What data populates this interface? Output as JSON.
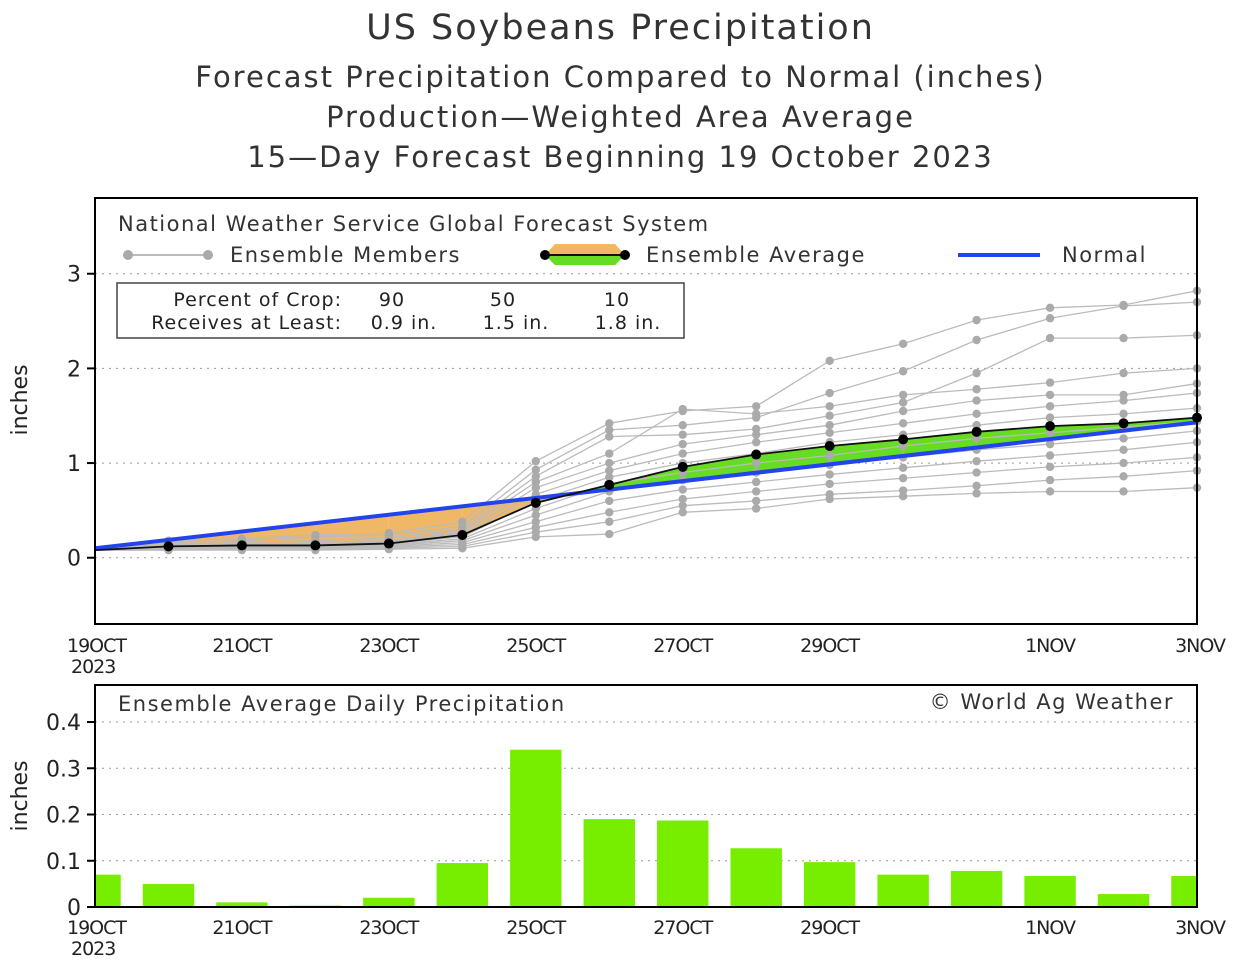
{
  "chart_data": [
    {
      "type": "line",
      "title": "US Soybeans Precipitation",
      "subtitles": [
        "Forecast Precipitation Compared to Normal (inches)",
        "Production—Weighted Area Average",
        "15—Day Forecast Beginning 19 October 2023"
      ],
      "ylabel": "inches",
      "ylim": [
        -0.7,
        3.8
      ],
      "yticks": [
        0,
        1,
        2,
        3
      ],
      "x_day_range": [
        0,
        15
      ],
      "xtick_labels": [
        {
          "day": 0,
          "label": "19OCT",
          "sub": "2023"
        },
        {
          "day": 2,
          "label": "21OCT"
        },
        {
          "day": 4,
          "label": "23OCT"
        },
        {
          "day": 6,
          "label": "25OCT"
        },
        {
          "day": 8,
          "label": "27OCT"
        },
        {
          "day": 10,
          "label": "29OCT"
        },
        {
          "day": 13,
          "label": "1NOV"
        },
        {
          "day": 15,
          "label": "3NOV"
        }
      ],
      "source_text": "National Weather Service Global Forecast System",
      "legend": {
        "members": "Ensemble Members",
        "average": "Ensemble Average",
        "normal": "Normal"
      },
      "crop_box": {
        "row1_label": "Percent of Crop:",
        "row2_label": "Receives at Least:",
        "percents": [
          "90",
          "50",
          "10"
        ],
        "amounts": [
          "0.9 in.",
          "1.5 in.",
          "1.8 in."
        ]
      },
      "normal": {
        "days": [
          0,
          15
        ],
        "values": [
          0.1,
          1.43
        ]
      },
      "ensemble_average": {
        "days": [
          0,
          1,
          2,
          3,
          4,
          5,
          6,
          7,
          8,
          9,
          10,
          11,
          12,
          13,
          14,
          15
        ],
        "values": [
          0.08,
          0.12,
          0.13,
          0.13,
          0.15,
          0.24,
          0.58,
          0.77,
          0.96,
          1.09,
          1.18,
          1.25,
          1.33,
          1.39,
          1.42,
          1.48
        ]
      },
      "ensemble_members": [
        [
          0.08,
          0.18,
          0.2,
          0.24,
          0.26,
          0.38,
          1.02,
          1.42,
          1.55,
          1.6,
          2.08,
          2.26,
          2.51,
          2.64,
          2.67,
          2.82
        ],
        [
          0.08,
          0.16,
          0.18,
          0.22,
          0.24,
          0.33,
          0.93,
          1.35,
          1.4,
          1.48,
          1.74,
          1.97,
          2.3,
          2.53,
          2.66,
          2.7
        ],
        [
          0.08,
          0.14,
          0.16,
          0.18,
          0.21,
          0.3,
          0.86,
          1.28,
          1.3,
          1.36,
          1.5,
          1.64,
          1.95,
          2.32,
          2.32,
          2.35
        ],
        [
          0.08,
          0.13,
          0.14,
          0.16,
          0.18,
          0.28,
          0.8,
          1.1,
          1.57,
          1.52,
          1.6,
          1.72,
          1.78,
          1.85,
          1.95,
          2.0
        ],
        [
          0.08,
          0.12,
          0.14,
          0.14,
          0.17,
          0.26,
          0.74,
          1.0,
          1.2,
          1.3,
          1.4,
          1.55,
          1.66,
          1.72,
          1.72,
          1.84
        ],
        [
          0.08,
          0.12,
          0.13,
          0.14,
          0.16,
          0.24,
          0.67,
          0.92,
          1.1,
          1.22,
          1.32,
          1.42,
          1.52,
          1.6,
          1.66,
          1.74
        ],
        [
          0.08,
          0.11,
          0.12,
          0.13,
          0.15,
          0.22,
          0.6,
          0.85,
          1.0,
          1.1,
          1.22,
          1.3,
          1.4,
          1.48,
          1.52,
          1.58
        ],
        [
          0.08,
          0.1,
          0.12,
          0.12,
          0.14,
          0.2,
          0.52,
          0.78,
          0.9,
          1.0,
          1.08,
          1.18,
          1.26,
          1.32,
          1.38,
          1.44
        ],
        [
          0.08,
          0.1,
          0.11,
          0.12,
          0.13,
          0.18,
          0.45,
          0.7,
          0.82,
          0.9,
          0.98,
          1.06,
          1.14,
          1.2,
          1.26,
          1.34
        ],
        [
          0.08,
          0.09,
          0.1,
          0.11,
          0.12,
          0.16,
          0.38,
          0.6,
          0.72,
          0.8,
          0.88,
          0.95,
          1.02,
          1.08,
          1.14,
          1.22
        ],
        [
          0.08,
          0.09,
          0.1,
          0.1,
          0.11,
          0.14,
          0.32,
          0.48,
          0.62,
          0.7,
          0.78,
          0.84,
          0.9,
          0.96,
          1.0,
          1.06
        ],
        [
          0.08,
          0.08,
          0.09,
          0.09,
          0.1,
          0.12,
          0.27,
          0.38,
          0.55,
          0.6,
          0.67,
          0.71,
          0.76,
          0.82,
          0.86,
          0.92
        ],
        [
          0.08,
          0.08,
          0.08,
          0.08,
          0.09,
          0.1,
          0.22,
          0.25,
          0.48,
          0.52,
          0.62,
          0.65,
          0.68,
          0.7,
          0.7,
          0.74
        ]
      ]
    },
    {
      "type": "bar",
      "title": "Ensemble Average Daily Precipitation",
      "credit": "© World Ag Weather",
      "ylabel": "inches",
      "ylim": [
        0,
        0.48
      ],
      "yticks": [
        "0",
        "0.1",
        "0.2",
        "0.3",
        "0.4"
      ],
      "days": [
        0,
        1,
        2,
        3,
        4,
        5,
        6,
        7,
        8,
        9,
        10,
        11,
        12,
        13,
        14,
        15
      ],
      "values": [
        0.07,
        0.05,
        0.01,
        0.003,
        0.02,
        0.095,
        0.34,
        0.19,
        0.187,
        0.127,
        0.097,
        0.07,
        0.078,
        0.067,
        0.028,
        0.067
      ],
      "bar_color": "#77ee00"
    }
  ],
  "colors": {
    "normal": "#2244ee",
    "members": "#bbbbbb",
    "member_points": "#aaaaaa",
    "above_normal": "#66dd22",
    "below_normal": "#f0b866",
    "average_line": "#111111"
  }
}
